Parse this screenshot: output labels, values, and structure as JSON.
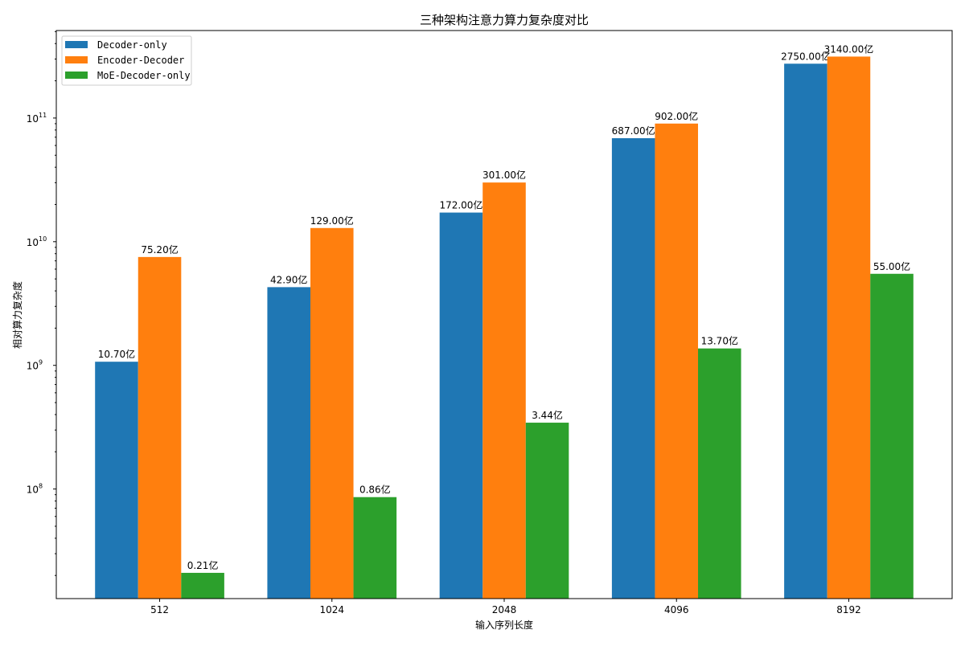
{
  "chart_data": {
    "type": "bar",
    "title": "三种架构注意力算力复杂度对比",
    "xlabel": "输入序列长度",
    "ylabel": "相对算力复杂度",
    "yscale": "log",
    "ylim": [
      13000000.0,
      510000000000.0
    ],
    "grid": false,
    "legend_position": "top-left",
    "categories": [
      "512",
      "1024",
      "2048",
      "4096",
      "8192"
    ],
    "yticks": [
      {
        "value": 100000000.0,
        "base": "10",
        "exp": "8"
      },
      {
        "value": 1000000000.0,
        "base": "10",
        "exp": "9"
      },
      {
        "value": 10000000000.0,
        "base": "10",
        "exp": "10"
      },
      {
        "value": 100000000000.0,
        "base": "10",
        "exp": "11"
      }
    ],
    "series": [
      {
        "name": "Decoder-only",
        "color": "#1f77b4",
        "values": [
          1070000000.0,
          4290000000.0,
          17200000000.0,
          68700000000.0,
          275000000000.0
        ],
        "labels": [
          "10.70亿",
          "42.90亿",
          "172.00亿",
          "687.00亿",
          "2750.00亿"
        ]
      },
      {
        "name": "Encoder-Decoder",
        "color": "#ff7f0e",
        "values": [
          7520000000.0,
          12900000000.0,
          30100000000.0,
          90200000000.0,
          314000000000.0
        ],
        "labels": [
          "75.20亿",
          "129.00亿",
          "301.00亿",
          "902.00亿",
          "3140.00亿"
        ]
      },
      {
        "name": "MoE-Decoder-only",
        "color": "#2ca02c",
        "values": [
          21000000.0,
          86000000.0,
          344000000.0,
          1370000000.0,
          5500000000.0
        ],
        "labels": [
          "0.21亿",
          "0.86亿",
          "3.44亿",
          "13.70亿",
          "55.00亿"
        ]
      }
    ]
  }
}
